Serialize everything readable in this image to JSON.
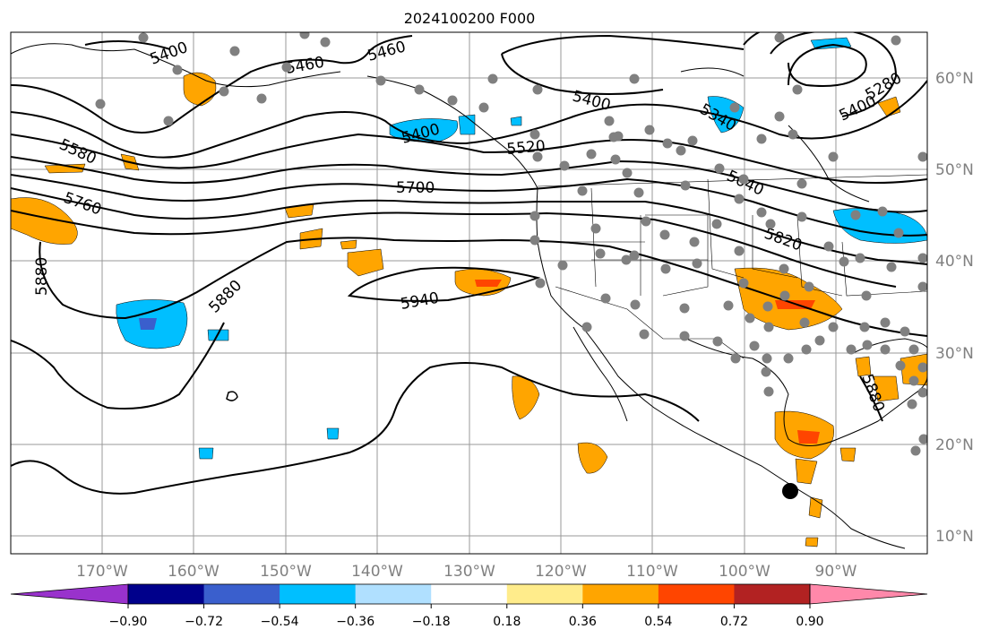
{
  "title": "2024100200 F000",
  "lon_ticks": [
    "170°W",
    "160°W",
    "150°W",
    "140°W",
    "130°W",
    "120°W",
    "110°W",
    "100°W",
    "90°W"
  ],
  "lat_ticks": [
    "60°N",
    "50°N",
    "40°N",
    "30°N",
    "20°N",
    "10°N"
  ],
  "contour_labels": [
    "5400",
    "5460",
    "5460",
    "5400",
    "5400",
    "5400",
    "5580",
    "5760",
    "5700",
    "5520",
    "5340",
    "5280",
    "5640",
    "5820",
    "5880",
    "5880",
    "5940",
    "5880"
  ],
  "colorbar": {
    "ticks": [
      "−0.90",
      "−0.72",
      "−0.54",
      "−0.36",
      "−0.18",
      "0.18",
      "0.36",
      "0.54",
      "0.72",
      "0.90"
    ],
    "colors": [
      "#9932CC",
      "#00008B",
      "#3A5FCD",
      "#00BFFF",
      "#B0E0FF",
      "#FFFFFF",
      "#FFEC8B",
      "#FFA500",
      "#FF4500",
      "#B22222",
      "#FF88AA"
    ]
  },
  "colors": {
    "orange": "#FFA500",
    "red": "#FF4500",
    "cyan": "#00BFFF",
    "blue": "#3A5FCD",
    "dot": "#808080"
  },
  "marker_icon": "storm-center-icon"
}
